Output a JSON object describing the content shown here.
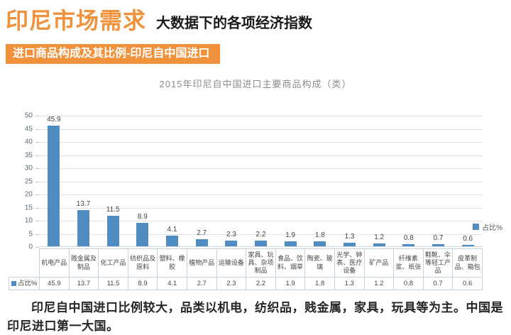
{
  "header": {
    "title": "印尼市场需求",
    "subtitle": "大数据下的各项经济指数"
  },
  "banner": {
    "label": "进口商品构成及其比例-印尼自中国进口"
  },
  "chart_data": {
    "type": "bar",
    "title": "2015年印尼自中国进口主要商品构成（类）",
    "series_name": "占比%",
    "legend": "占比%",
    "legend_position": "right-inside",
    "categories": [
      "机电产品",
      "贱金属及制品",
      "化工产品",
      "纺织品及原料",
      "塑料、橡胶",
      "植物产品",
      "运输设备",
      "家具、玩具、杂项制品",
      "食品、饮料、烟草",
      "陶瓷、玻璃",
      "光学、钟表、医疗设备",
      "矿产品",
      "纤维素浆、纸张",
      "鞋靴、伞等轻工产品",
      "皮革制品、箱包"
    ],
    "values": [
      45.9,
      13.7,
      11.5,
      8.9,
      4.1,
      2.7,
      2.3,
      2.2,
      1.9,
      1.8,
      1.3,
      1.2,
      0.8,
      0.7,
      0.6
    ],
    "xlabel": "",
    "ylabel": "占比%",
    "ylim": [
      0,
      50
    ],
    "ytick_step": 5,
    "grid": true,
    "bar_color": "#4E8CC2"
  },
  "table": {
    "row_label": "占比%"
  },
  "footer": {
    "text": "印尼自中国进口比例较大，品类以机电，纺织品，贱金属，家具，玩具等为主。中国是印尼进口第一大国。"
  },
  "colors": {
    "accent_orange": "#F0923B",
    "bar_blue": "#4E8CC2",
    "gridline": "#DAE3EC",
    "table_border": "#C5D2DC"
  }
}
